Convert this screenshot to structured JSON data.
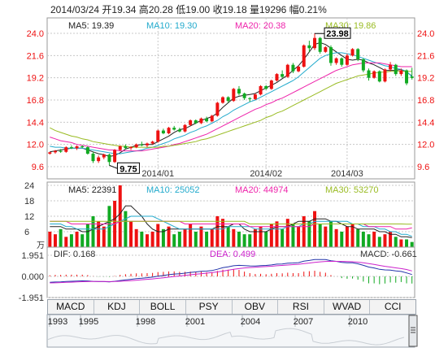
{
  "header": {
    "date": "2014/03/24",
    "open_label": "开",
    "open": "19.34",
    "high_label": "高",
    "high": "20.28",
    "low_label": "低",
    "low": "19.00",
    "close_label": "收",
    "close": "19.18",
    "volume_label": "量",
    "volume": "19296",
    "change_label": "幅",
    "change": "0.21%"
  },
  "colors": {
    "up": "#ee1111",
    "down": "#11aa22",
    "ma5": "#222222",
    "ma10": "#22aacc",
    "ma20": "#ee22aa",
    "ma30": "#99bb22",
    "grid": "#c8c8c8"
  },
  "tabs": [
    "MACD",
    "KDJ",
    "BOLL",
    "PSY",
    "OBV",
    "RSI",
    "WVAD",
    "CCI"
  ],
  "active_tab": "MACD",
  "timeline_years": [
    "1993",
    "1995",
    "1998",
    "2001",
    "2004",
    "2007",
    "2010"
  ],
  "chart_data": [
    {
      "type": "candlestick",
      "y_ticks": [
        "24.0",
        "21.6",
        "19.2",
        "16.8",
        "14.4",
        "12.0",
        "9.6"
      ],
      "ylim": [
        9.6,
        24.0
      ],
      "x_ticks": [
        "2014/01",
        "2014/02",
        "2014/03"
      ],
      "ma_legend": [
        {
          "name": "MA5",
          "value": "19.39"
        },
        {
          "name": "MA10",
          "value": "19.30"
        },
        {
          "name": "MA20",
          "value": "20.38"
        },
        {
          "name": "MA30",
          "value": "19.86"
        }
      ],
      "annotations": {
        "max": "23.98",
        "min": "9.75"
      },
      "ohlc": [
        [
          11.0,
          11.2,
          10.9,
          11.15
        ],
        [
          11.15,
          11.4,
          11.0,
          11.3
        ],
        [
          11.3,
          11.5,
          11.1,
          11.2
        ],
        [
          11.2,
          11.8,
          11.1,
          11.7
        ],
        [
          11.7,
          11.9,
          11.5,
          11.6
        ],
        [
          11.6,
          11.9,
          11.4,
          11.8
        ],
        [
          11.8,
          11.9,
          11.6,
          11.7
        ],
        [
          11.7,
          11.8,
          10.9,
          11.0
        ],
        [
          11.0,
          11.2,
          10.0,
          10.2
        ],
        [
          10.2,
          10.8,
          10.0,
          10.6
        ],
        [
          10.6,
          11.0,
          10.4,
          10.9
        ],
        [
          10.9,
          11.0,
          9.75,
          10.1
        ],
        [
          10.1,
          11.5,
          10.0,
          11.4
        ],
        [
          11.4,
          11.9,
          11.3,
          11.8
        ],
        [
          11.8,
          12.0,
          11.5,
          11.6
        ],
        [
          11.6,
          11.8,
          11.4,
          11.7
        ],
        [
          11.7,
          12.1,
          11.6,
          12.0
        ],
        [
          12.0,
          12.3,
          11.8,
          11.9
        ],
        [
          11.9,
          12.2,
          11.7,
          12.1
        ],
        [
          12.1,
          12.4,
          12.0,
          12.3
        ],
        [
          12.3,
          13.6,
          12.2,
          13.5
        ],
        [
          13.5,
          13.7,
          13.1,
          13.2
        ],
        [
          13.2,
          13.9,
          13.1,
          13.8
        ],
        [
          13.8,
          14.0,
          13.5,
          13.6
        ],
        [
          13.6,
          13.8,
          13.3,
          13.4
        ],
        [
          13.4,
          14.2,
          13.3,
          14.1
        ],
        [
          14.1,
          14.7,
          14.0,
          14.6
        ],
        [
          14.6,
          14.7,
          14.2,
          14.3
        ],
        [
          14.3,
          14.9,
          14.2,
          14.8
        ],
        [
          14.8,
          15.0,
          14.4,
          14.5
        ],
        [
          14.5,
          15.2,
          14.4,
          15.1
        ],
        [
          15.1,
          16.6,
          15.0,
          16.5
        ],
        [
          16.5,
          17.2,
          16.4,
          17.1
        ],
        [
          17.1,
          17.2,
          16.5,
          16.7
        ],
        [
          16.7,
          18.1,
          16.6,
          18.0
        ],
        [
          18.0,
          18.3,
          17.3,
          17.5
        ],
        [
          17.5,
          17.6,
          16.8,
          17.0
        ],
        [
          17.0,
          17.1,
          16.6,
          16.9
        ],
        [
          16.9,
          17.5,
          16.8,
          17.4
        ],
        [
          17.4,
          18.4,
          17.3,
          18.3
        ],
        [
          18.3,
          18.4,
          17.9,
          18.0
        ],
        [
          18.0,
          19.0,
          17.9,
          18.9
        ],
        [
          18.9,
          19.7,
          18.8,
          19.6
        ],
        [
          19.6,
          20.0,
          19.2,
          19.3
        ],
        [
          19.3,
          20.7,
          19.2,
          20.6
        ],
        [
          20.6,
          20.8,
          19.7,
          19.9
        ],
        [
          19.9,
          20.5,
          19.8,
          20.4
        ],
        [
          20.4,
          22.8,
          20.3,
          22.7
        ],
        [
          22.7,
          23.2,
          22.0,
          22.4
        ],
        [
          22.4,
          23.98,
          22.2,
          23.5
        ],
        [
          23.5,
          23.6,
          21.8,
          22.0
        ],
        [
          22.0,
          22.6,
          21.9,
          22.5
        ],
        [
          22.5,
          22.7,
          20.5,
          20.8
        ],
        [
          20.8,
          21.4,
          20.6,
          21.3
        ],
        [
          21.3,
          21.4,
          20.4,
          20.6
        ],
        [
          20.6,
          21.8,
          20.5,
          21.6
        ],
        [
          21.6,
          22.4,
          21.5,
          22.3
        ],
        [
          22.3,
          22.4,
          21.0,
          21.2
        ],
        [
          21.2,
          21.3,
          19.8,
          20.0
        ],
        [
          20.0,
          20.2,
          18.9,
          19.2
        ],
        [
          19.2,
          20.0,
          19.1,
          19.9
        ],
        [
          19.9,
          20.0,
          18.7,
          18.8
        ],
        [
          18.8,
          20.2,
          18.7,
          20.1
        ],
        [
          20.1,
          20.9,
          19.9,
          20.6
        ],
        [
          20.6,
          20.7,
          19.4,
          19.6
        ],
        [
          19.6,
          20.2,
          19.4,
          20.0
        ],
        [
          20.0,
          20.1,
          18.4,
          18.6
        ],
        [
          19.34,
          20.28,
          19.0,
          19.18
        ]
      ],
      "series": [
        {
          "name": "MA5",
          "values": [
            11.2,
            11.3,
            11.4,
            11.5,
            11.6,
            11.6,
            11.6,
            11.4,
            11.2,
            11.0,
            10.9,
            10.7,
            10.8,
            11.1,
            11.5,
            11.7,
            11.9,
            12.0,
            12.0,
            12.0,
            12.3,
            12.6,
            12.9,
            13.3,
            13.6,
            13.7,
            14.0,
            14.3,
            14.6,
            14.8,
            15.0,
            15.4,
            16.0,
            16.5,
            17.0,
            17.2,
            17.3,
            17.4,
            17.5,
            17.8,
            18.1,
            18.4,
            18.7,
            19.1,
            19.5,
            20.0,
            20.5,
            21.2,
            22.0,
            22.8,
            23.0,
            22.8,
            22.4,
            22.0,
            21.6,
            21.2,
            21.1,
            21.2,
            21.1,
            20.8,
            20.6,
            20.3,
            20.0,
            20.0,
            20.0,
            20.1,
            19.8,
            19.4
          ]
        },
        {
          "name": "MA10",
          "values": [
            11.8,
            11.7,
            11.7,
            11.6,
            11.6,
            11.6,
            11.6,
            11.5,
            11.4,
            11.3,
            11.2,
            11.1,
            11.0,
            11.0,
            11.1,
            11.2,
            11.3,
            11.4,
            11.6,
            11.7,
            11.9,
            12.1,
            12.3,
            12.6,
            12.8,
            13.0,
            13.3,
            13.5,
            13.8,
            14.0,
            14.3,
            14.6,
            15.0,
            15.3,
            15.7,
            16.0,
            16.3,
            16.6,
            16.8,
            17.1,
            17.4,
            17.7,
            18.0,
            18.3,
            18.6,
            18.9,
            19.3,
            19.8,
            20.3,
            20.8,
            21.3,
            21.6,
            21.8,
            21.9,
            21.9,
            21.8,
            21.7,
            21.5,
            21.3,
            21.1,
            20.9,
            20.7,
            20.5,
            20.4,
            20.2,
            20.1,
            19.9,
            19.3
          ]
        },
        {
          "name": "MA20",
          "values": [
            12.8,
            12.6,
            12.4,
            12.3,
            12.2,
            12.0,
            11.9,
            11.8,
            11.7,
            11.6,
            11.5,
            11.4,
            11.4,
            11.3,
            11.3,
            11.3,
            11.3,
            11.3,
            11.4,
            11.5,
            11.6,
            11.7,
            11.8,
            12.0,
            12.1,
            12.3,
            12.5,
            12.7,
            12.9,
            13.1,
            13.4,
            13.7,
            14.0,
            14.3,
            14.6,
            14.9,
            15.2,
            15.5,
            15.8,
            16.0,
            16.3,
            16.5,
            16.8,
            17.0,
            17.3,
            17.6,
            17.9,
            18.2,
            18.5,
            18.8,
            19.1,
            19.4,
            19.7,
            20.0,
            20.2,
            20.4,
            20.6,
            20.7,
            20.8,
            20.8,
            20.8,
            20.8,
            20.7,
            20.6,
            20.5,
            20.4,
            20.4,
            20.4
          ]
        },
        {
          "name": "MA30",
          "values": [
            13.8,
            13.5,
            13.3,
            13.1,
            12.9,
            12.8,
            12.6,
            12.5,
            12.3,
            12.2,
            12.1,
            12.0,
            11.9,
            11.8,
            11.8,
            11.7,
            11.7,
            11.7,
            11.7,
            11.7,
            11.7,
            11.8,
            11.8,
            11.9,
            12.0,
            12.1,
            12.2,
            12.3,
            12.5,
            12.6,
            12.8,
            13.0,
            13.2,
            13.4,
            13.6,
            13.8,
            14.0,
            14.2,
            14.4,
            14.6,
            14.9,
            15.1,
            15.4,
            15.6,
            15.9,
            16.2,
            16.5,
            16.8,
            17.1,
            17.4,
            17.7,
            18.0,
            18.3,
            18.6,
            18.8,
            19.0,
            19.2,
            19.4,
            19.5,
            19.6,
            19.7,
            19.8,
            19.8,
            19.9,
            19.9,
            19.9,
            19.9,
            19.9
          ]
        }
      ]
    },
    {
      "type": "bar",
      "y_ticks": [
        "24",
        "18",
        "12",
        "6"
      ],
      "unit": "万",
      "ylim": [
        0,
        24
      ],
      "ma_legend": [
        {
          "name": "MA5",
          "value": "22391"
        },
        {
          "name": "MA10",
          "value": "25052"
        },
        {
          "name": "MA20",
          "value": "44974"
        },
        {
          "name": "MA30",
          "value": "53270"
        }
      ],
      "values": [
        6,
        5,
        7,
        4,
        5,
        6,
        5,
        9,
        12,
        10,
        8,
        16,
        18,
        24,
        14,
        10,
        7,
        6,
        5,
        6,
        9,
        7,
        8,
        5,
        6,
        7,
        9,
        6,
        8,
        6,
        7,
        12,
        11,
        8,
        7,
        6,
        5,
        5,
        7,
        8,
        6,
        9,
        10,
        7,
        11,
        9,
        8,
        12,
        10,
        14,
        9,
        8,
        10,
        7,
        6,
        8,
        9,
        7,
        6,
        5,
        6,
        4,
        5,
        6,
        4,
        3,
        3,
        2
      ],
      "ma_values": [
        [
          8,
          8,
          8,
          7,
          7,
          7,
          6,
          6,
          7,
          8,
          9,
          10,
          11,
          13,
          16,
          16,
          14,
          12,
          9,
          7,
          6,
          6,
          7,
          7,
          7,
          7,
          7,
          7,
          7,
          7,
          7,
          8,
          8,
          8,
          9,
          9,
          7,
          6,
          6,
          6,
          6,
          7,
          8,
          8,
          8,
          9,
          10,
          10,
          10,
          11,
          11,
          11,
          10,
          10,
          9,
          8,
          8,
          7,
          7,
          7,
          7,
          6,
          6,
          5,
          5,
          4,
          4,
          3.7
        ],
        [
          9,
          9,
          9,
          8,
          8,
          7,
          7,
          7,
          7,
          7,
          7,
          8,
          9,
          10,
          11,
          12,
          12,
          12,
          12,
          12,
          11,
          10,
          9,
          8,
          7,
          7,
          7,
          7,
          7,
          7,
          7,
          7,
          7,
          8,
          8,
          8,
          8,
          8,
          7,
          7,
          7,
          7,
          7,
          7,
          8,
          8,
          8,
          9,
          9,
          10,
          10,
          10,
          10,
          10,
          10,
          10,
          9,
          9,
          8,
          8,
          8,
          7,
          7,
          6,
          6,
          5,
          5,
          4.2
        ],
        [
          10,
          10,
          10,
          10,
          9,
          9,
          9,
          9,
          9,
          9,
          9,
          9,
          9,
          10,
          10,
          10,
          10,
          10,
          10,
          10,
          10,
          10,
          10,
          10,
          10,
          9,
          9,
          9,
          9,
          9,
          9,
          9,
          9,
          9,
          9,
          9,
          9,
          8,
          8,
          8,
          8,
          8,
          8,
          8,
          8,
          8,
          8,
          8,
          8,
          9,
          9,
          9,
          9,
          9,
          9,
          9,
          9,
          9,
          9,
          8,
          8,
          8,
          8,
          8,
          7,
          7,
          7,
          7.5
        ],
        [
          10,
          10,
          10,
          10,
          10,
          10,
          10,
          10,
          10,
          10,
          10,
          10,
          10,
          10,
          10,
          10,
          10,
          10,
          10,
          10,
          10,
          10,
          10,
          10,
          10,
          10,
          10,
          10,
          10,
          10,
          10,
          10,
          10,
          10,
          10,
          10,
          10,
          9,
          9,
          9,
          9,
          9,
          9,
          9,
          9,
          9,
          9,
          9,
          9,
          9,
          9,
          9,
          9,
          9,
          9,
          9,
          9,
          9,
          9,
          9,
          9,
          9,
          9,
          9,
          9,
          9,
          8.9,
          8.9
        ]
      ]
    },
    {
      "type": "macd",
      "y_ticks": [
        "1.951",
        "0.000",
        "-1.951"
      ],
      "ylim": [
        -1.951,
        1.951
      ],
      "legend": [
        {
          "name": "DIF",
          "value": "0.168"
        },
        {
          "name": "DEA",
          "value": "0.499"
        },
        {
          "name": "MACD",
          "value": "-0.661"
        }
      ],
      "dif": [
        -0.55,
        -0.52,
        -0.5,
        -0.47,
        -0.45,
        -0.43,
        -0.41,
        -0.42,
        -0.46,
        -0.48,
        -0.48,
        -0.5,
        -0.45,
        -0.38,
        -0.32,
        -0.27,
        -0.21,
        -0.17,
        -0.12,
        -0.07,
        0.02,
        0.08,
        0.16,
        0.22,
        0.25,
        0.3,
        0.37,
        0.41,
        0.47,
        0.49,
        0.54,
        0.66,
        0.8,
        0.88,
        0.98,
        1.02,
        1.0,
        0.97,
        0.96,
        1.0,
        1.01,
        1.06,
        1.13,
        1.15,
        1.22,
        1.24,
        1.27,
        1.4,
        1.47,
        1.56,
        1.55,
        1.55,
        1.45,
        1.39,
        1.3,
        1.26,
        1.25,
        1.16,
        1.02,
        0.86,
        0.78,
        0.65,
        0.6,
        0.58,
        0.5,
        0.46,
        0.32,
        0.17
      ],
      "dea": [
        -0.6,
        -0.59,
        -0.57,
        -0.55,
        -0.53,
        -0.51,
        -0.49,
        -0.48,
        -0.47,
        -0.47,
        -0.47,
        -0.48,
        -0.47,
        -0.45,
        -0.42,
        -0.39,
        -0.35,
        -0.31,
        -0.27,
        -0.23,
        -0.18,
        -0.13,
        -0.07,
        -0.01,
        0.04,
        0.09,
        0.15,
        0.2,
        0.25,
        0.3,
        0.35,
        0.41,
        0.49,
        0.57,
        0.65,
        0.72,
        0.78,
        0.82,
        0.85,
        0.88,
        0.91,
        0.94,
        0.98,
        1.01,
        1.05,
        1.09,
        1.12,
        1.18,
        1.23,
        1.3,
        1.34,
        1.38,
        1.39,
        1.39,
        1.38,
        1.37,
        1.35,
        1.31,
        1.26,
        1.18,
        1.1,
        1.01,
        0.93,
        0.86,
        0.79,
        0.72,
        0.64,
        0.5
      ]
    }
  ]
}
